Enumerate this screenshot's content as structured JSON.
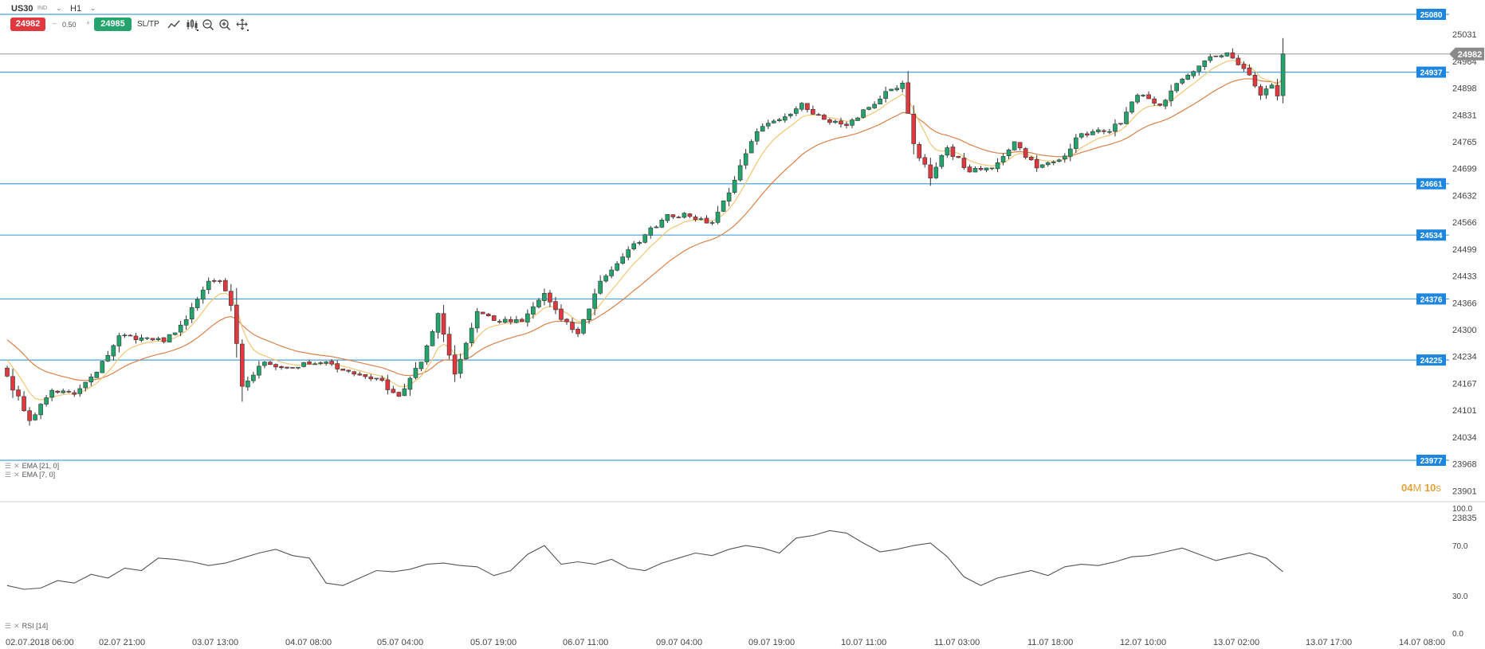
{
  "header": {
    "symbol": "US30",
    "symbol_sub": "IND",
    "timeframe": "H1",
    "sell_price": "24982",
    "buy_price": "24985",
    "quantity": "0.50",
    "qty_minus": "–",
    "qty_plus": "+",
    "sltp_label": "SL/TP",
    "tools": [
      "line-chart-icon",
      "candles-icon",
      "zoom-out-icon",
      "zoom-in-icon",
      "crosshair-icon"
    ]
  },
  "indicators": {
    "ema21_label": "EMA [21, 0]",
    "ema7_label": "EMA [7, 0]",
    "rsi_label": "RSI [14]"
  },
  "countdown": {
    "min": "04",
    "min_unit": "M",
    "sec": "10",
    "sec_unit": "s"
  },
  "colors": {
    "up": "#22a46c",
    "down": "#e0383e",
    "level": "#4aa0d9",
    "level_tag": "#1c86e0",
    "ema7": "#f0c674",
    "ema21": "#d9824a",
    "rsi": "#555555",
    "price_tag": "#8b8b8b",
    "countdown": "#e3a13a"
  },
  "chart_data": {
    "type": "candlestick",
    "symbol": "US30",
    "timeframe": "H1",
    "current_price": 24982,
    "price_tag": "24982",
    "ylim": [
      23835,
      25100
    ],
    "y_ticks": [
      25031,
      24964,
      24898,
      24831,
      24765,
      24699,
      24632,
      24566,
      24499,
      24433,
      24366,
      24300,
      24234,
      24167,
      24101,
      24034,
      23968,
      23901,
      23835
    ],
    "horizontal_levels": [
      25080,
      24937,
      24661,
      24534,
      24376,
      24225,
      23977
    ],
    "x_labels": [
      "02.07.2018 06:00",
      "02.07 21:00",
      "03.07 13:00",
      "04.07 08:00",
      "05.07 04:00",
      "05.07 19:00",
      "06.07 11:00",
      "09.07 04:00",
      "09.07 19:00",
      "10.07 11:00",
      "11.07 03:00",
      "11.07 18:00",
      "12.07 10:00",
      "13.07 02:00",
      "13.07 17:00",
      "14.07 08:00"
    ],
    "close_anchors": [
      [
        0,
        24185
      ],
      [
        4,
        24075
      ],
      [
        8,
        24150
      ],
      [
        12,
        24140
      ],
      [
        16,
        24195
      ],
      [
        20,
        24285
      ],
      [
        24,
        24280
      ],
      [
        28,
        24270
      ],
      [
        32,
        24325
      ],
      [
        36,
        24420
      ],
      [
        38,
        24420
      ],
      [
        40,
        24360
      ],
      [
        42,
        24160
      ],
      [
        46,
        24220
      ],
      [
        50,
        24205
      ],
      [
        54,
        24215
      ],
      [
        58,
        24215
      ],
      [
        62,
        24190
      ],
      [
        66,
        24180
      ],
      [
        70,
        24135
      ],
      [
        74,
        24220
      ],
      [
        77,
        24340
      ],
      [
        80,
        24190
      ],
      [
        84,
        24345
      ],
      [
        88,
        24320
      ],
      [
        92,
        24320
      ],
      [
        96,
        24390
      ],
      [
        99,
        24325
      ],
      [
        102,
        24290
      ],
      [
        106,
        24420
      ],
      [
        110,
        24480
      ],
      [
        114,
        24535
      ],
      [
        118,
        24585
      ],
      [
        122,
        24580
      ],
      [
        126,
        24565
      ],
      [
        130,
        24670
      ],
      [
        134,
        24790
      ],
      [
        138,
        24820
      ],
      [
        142,
        24860
      ],
      [
        146,
        24820
      ],
      [
        150,
        24805
      ],
      [
        154,
        24850
      ],
      [
        158,
        24895
      ],
      [
        160,
        24910
      ],
      [
        162,
        24760
      ],
      [
        165,
        24675
      ],
      [
        168,
        24750
      ],
      [
        172,
        24690
      ],
      [
        176,
        24700
      ],
      [
        180,
        24765
      ],
      [
        184,
        24700
      ],
      [
        188,
        24720
      ],
      [
        192,
        24785
      ],
      [
        196,
        24790
      ],
      [
        199,
        24810
      ],
      [
        202,
        24880
      ],
      [
        206,
        24855
      ],
      [
        210,
        24920
      ],
      [
        214,
        24965
      ],
      [
        218,
        24985
      ],
      [
        220,
        24955
      ],
      [
        222,
        24930
      ],
      [
        224,
        24880
      ],
      [
        226,
        24905
      ],
      [
        227,
        24878
      ],
      [
        228,
        24982
      ]
    ],
    "ema_periods": [
      7,
      21
    ],
    "rsi": {
      "period": 14,
      "ylim": [
        0,
        100
      ],
      "y_ticks": [
        100.0,
        70.0,
        30.0,
        0.0
      ],
      "tick_labels": [
        "100.0",
        "70.0",
        "30.0",
        "0.0"
      ],
      "values": [
        38,
        35,
        36,
        42,
        40,
        47,
        44,
        52,
        50,
        60,
        59,
        57,
        54,
        56,
        60,
        64,
        67,
        62,
        60,
        40,
        38,
        44,
        50,
        49,
        51,
        55,
        56,
        54,
        53,
        46,
        50,
        63,
        70,
        55,
        57,
        55,
        59,
        52,
        50,
        56,
        60,
        64,
        62,
        67,
        70,
        68,
        64,
        76,
        78,
        82,
        80,
        72,
        65,
        67,
        70,
        72,
        61,
        45,
        38,
        44,
        47,
        50,
        46,
        53,
        55,
        54,
        57,
        61,
        62,
        65,
        68,
        63,
        58,
        61,
        64,
        60,
        49
      ]
    }
  }
}
